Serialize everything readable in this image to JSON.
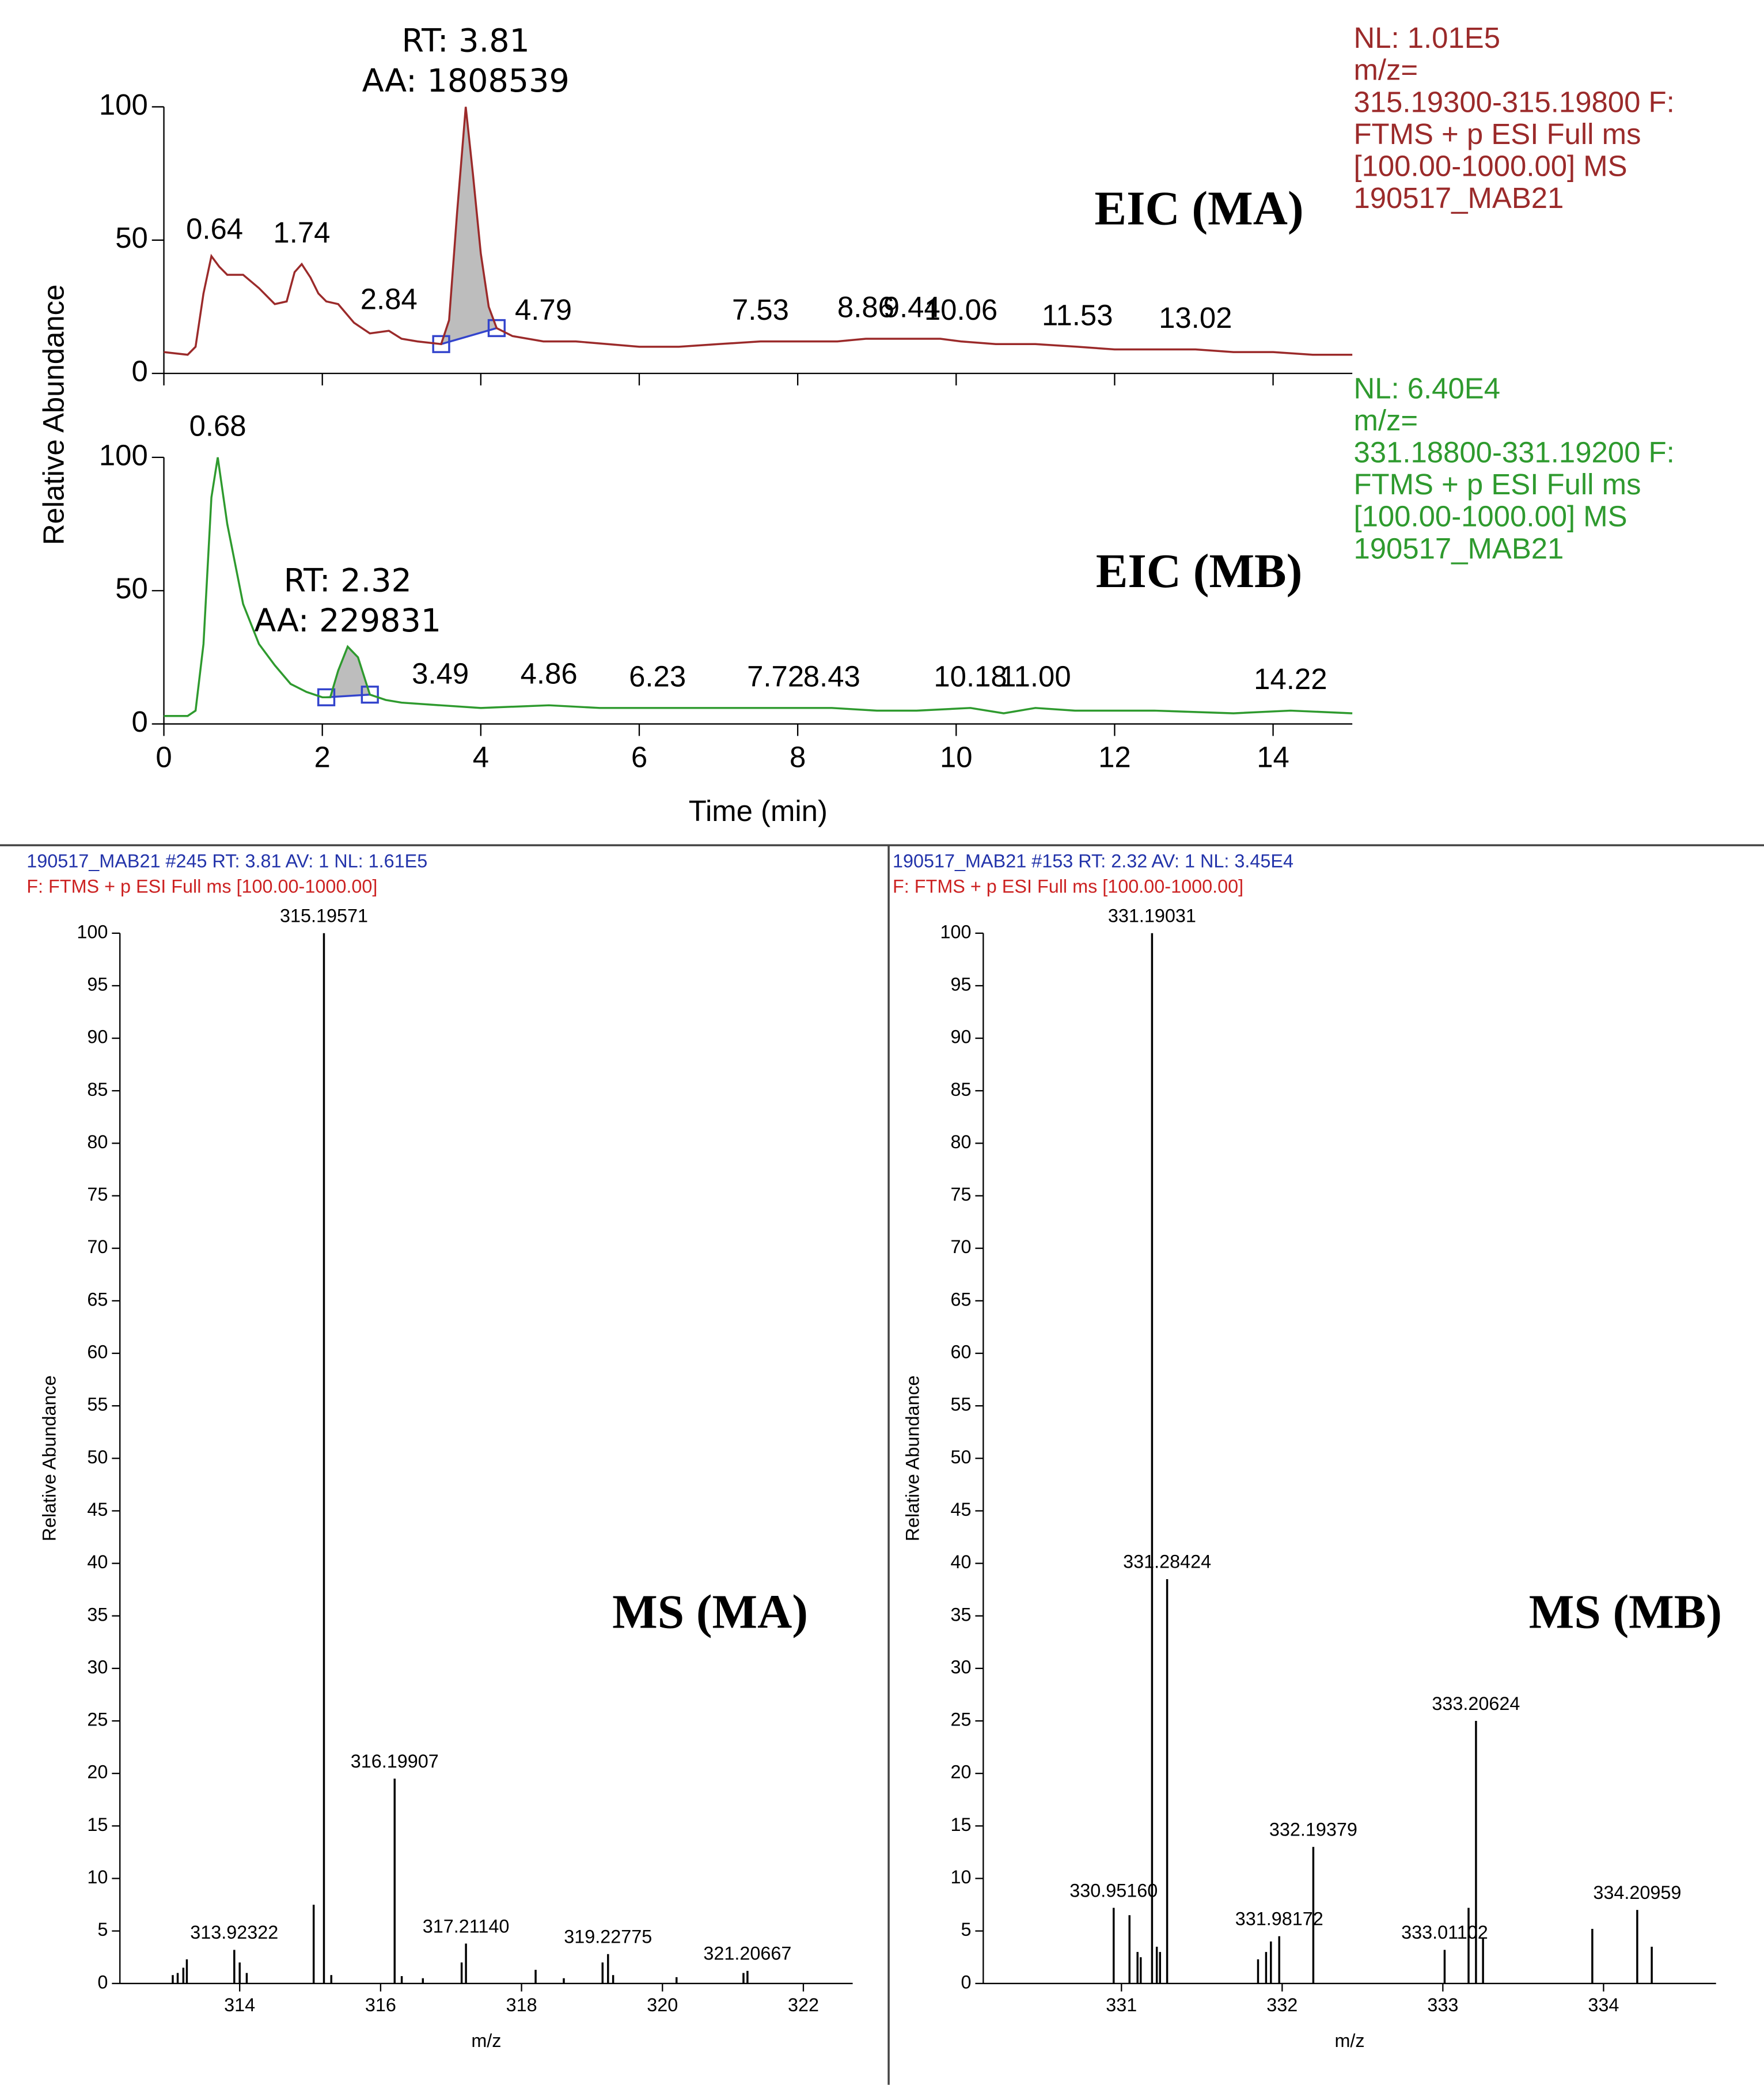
{
  "chart_data": [
    {
      "type": "line",
      "color": "#9b2a2a",
      "ylabel": "Relative Abundance",
      "label": "EIC (MA)",
      "xlim": [
        0,
        15
      ],
      "ylim": [
        0,
        100
      ],
      "yticks": [
        0,
        50,
        100
      ],
      "xticks": [
        0,
        2,
        4,
        6,
        8,
        10,
        12,
        14
      ],
      "xtick_labels": false,
      "x": [
        0,
        0.3,
        0.4,
        0.5,
        0.6,
        0.7,
        0.8,
        1.0,
        1.2,
        1.4,
        1.55,
        1.65,
        1.74,
        1.85,
        1.95,
        2.05,
        2.2,
        2.4,
        2.6,
        2.84,
        3.0,
        3.2,
        3.5,
        3.6,
        3.7,
        3.81,
        3.9,
        4.0,
        4.1,
        4.2,
        4.4,
        4.79,
        5.2,
        5.6,
        6.0,
        6.5,
        7.0,
        7.53,
        8.0,
        8.5,
        8.86,
        9.44,
        9.8,
        10.06,
        10.5,
        11.0,
        11.53,
        12.0,
        12.5,
        13.02,
        13.5,
        14.0,
        14.5,
        15
      ],
      "values": [
        8,
        7,
        10,
        30,
        44,
        40,
        37,
        37,
        32,
        26,
        27,
        38,
        41,
        36,
        30,
        27,
        26,
        19,
        15,
        16,
        13,
        12,
        11,
        20,
        60,
        100,
        75,
        45,
        25,
        17,
        14,
        12,
        12,
        11,
        10,
        10,
        11,
        12,
        12,
        12,
        13,
        13,
        13,
        12,
        11,
        11,
        10,
        9,
        9,
        9,
        8,
        8,
        7,
        7
      ],
      "peak_labels": [
        0.64,
        1.74,
        2.84,
        4.79,
        7.53,
        8.86,
        9.44,
        10.06,
        11.53,
        13.02
      ],
      "integrated_peak": [
        3.5,
        4.2
      ],
      "peak_annotation": [
        "RT: 3.81",
        "AA: 1808539"
      ],
      "info": [
        "NL: 1.01E5",
        "m/z=",
        "315.19300-315.19800 F:",
        "FTMS + p ESI Full ms",
        "[100.00-1000.00]  MS",
        "190517_MAB21"
      ]
    },
    {
      "type": "line",
      "color": "#2e9a2e",
      "xlabel": "Time (min)",
      "label": "EIC (MB)",
      "xlim": [
        0,
        15
      ],
      "ylim": [
        0,
        100
      ],
      "yticks": [
        0,
        50,
        100
      ],
      "xticks": [
        0,
        2,
        4,
        6,
        8,
        10,
        12,
        14
      ],
      "x": [
        0,
        0.3,
        0.4,
        0.5,
        0.6,
        0.68,
        0.8,
        1.0,
        1.2,
        1.4,
        1.6,
        1.8,
        2.0,
        2.1,
        2.2,
        2.32,
        2.45,
        2.6,
        2.8,
        3.0,
        3.49,
        4.0,
        4.86,
        5.5,
        6.23,
        7.0,
        7.72,
        8.43,
        9.0,
        9.5,
        10.18,
        10.6,
        11.0,
        11.5,
        12.5,
        13.5,
        14.22,
        15
      ],
      "values": [
        3,
        3,
        5,
        30,
        85,
        100,
        75,
        45,
        30,
        22,
        15,
        12,
        10,
        10,
        20,
        29,
        25,
        11,
        9,
        8,
        7,
        6,
        7,
        6,
        6,
        6,
        6,
        6,
        5,
        5,
        6,
        4,
        6,
        5,
        5,
        4,
        5,
        4
      ],
      "peak_labels": [
        0.68,
        3.49,
        4.86,
        6.23,
        7.72,
        8.43,
        10.18,
        {
          "value": 11.0,
          "label": "11.00"
        },
        14.22
      ],
      "integrated_peak": [
        2.05,
        2.6
      ],
      "peak_annotation": [
        "RT: 2.32",
        "AA: 229831"
      ],
      "info": [
        "NL: 6.40E4",
        "m/z=",
        "331.18800-331.19200 F:",
        "FTMS + p ESI Full ms",
        "[100.00-1000.00]  MS",
        "190517_MAB21"
      ]
    },
    {
      "type": "stem",
      "color": "#000000",
      "ylabel": "Relative Abundance",
      "xlabel": "m/z",
      "label": "MS (MA)",
      "header": [
        "190517_MAB21 #245  RT: 3.81  AV: 1  NL: 1.61E5",
        "F: FTMS + p ESI Full ms [100.00-1000.00]"
      ],
      "xlim": [
        312.3,
        322.7
      ],
      "ylim": [
        0,
        100
      ],
      "xticks": [
        314,
        316,
        318,
        320,
        322
      ],
      "yticks": [
        0,
        5,
        10,
        15,
        20,
        25,
        30,
        35,
        40,
        45,
        50,
        55,
        60,
        65,
        70,
        75,
        80,
        85,
        90,
        95,
        100
      ],
      "x": [
        313.05,
        313.12,
        313.2,
        313.25,
        313.92322,
        314.0,
        314.1,
        315.05,
        315.19571,
        315.3,
        316.19907,
        316.3,
        316.6,
        317.15,
        317.2114,
        318.2,
        318.6,
        319.15,
        319.22775,
        319.3,
        320.2,
        321.15,
        321.20667
      ],
      "values": [
        0.8,
        1.0,
        1.5,
        2.3,
        3.2,
        2,
        1,
        7.5,
        100,
        0.8,
        19.5,
        0.7,
        0.5,
        2,
        3.8,
        1.3,
        0.5,
        2,
        2.8,
        0.8,
        0.6,
        1.0,
        1.2
      ],
      "x_labels": [
        null,
        null,
        null,
        null,
        "313.92322",
        null,
        null,
        null,
        "315.19571",
        null,
        "316.19907",
        null,
        null,
        null,
        "317.21140",
        null,
        null,
        null,
        "319.22775",
        null,
        null,
        null,
        "321.20667"
      ]
    },
    {
      "type": "stem",
      "color": "#000000",
      "ylabel": "Relative Abundance",
      "xlabel": "m/z",
      "label": "MS (MB)",
      "header": [
        "190517_MAB21 #153  RT: 2.32  AV: 1  NL: 3.45E4",
        "F: FTMS + p ESI Full ms [100.00-1000.00]"
      ],
      "xlim": [
        330.14,
        334.7
      ],
      "ylim": [
        0,
        100
      ],
      "xticks": [
        331,
        332,
        333,
        334
      ],
      "yticks": [
        0,
        5,
        10,
        15,
        20,
        25,
        30,
        35,
        40,
        45,
        50,
        55,
        60,
        65,
        70,
        75,
        80,
        85,
        90,
        95,
        100
      ],
      "x": [
        330.9516,
        331.05,
        331.1,
        331.12,
        331.19031,
        331.22,
        331.24,
        331.28424,
        331.85,
        331.9,
        331.93,
        331.98172,
        332.19379,
        333.01102,
        333.16,
        333.20624,
        333.25,
        333.93,
        334.20959,
        334.3
      ],
      "values": [
        7.2,
        6.5,
        3,
        2.5,
        100,
        3.5,
        3,
        38.5,
        2.3,
        3,
        4,
        4.5,
        13,
        3.2,
        7.2,
        25,
        4.3,
        5.2,
        7,
        3.5
      ],
      "x_labels": [
        "330.95160",
        null,
        null,
        null,
        "331.19031",
        null,
        null,
        "331.28424",
        null,
        null,
        null,
        "331.98172",
        "332.19379",
        "333.01102",
        null,
        "333.20624",
        null,
        null,
        "334.20959",
        null
      ]
    }
  ]
}
